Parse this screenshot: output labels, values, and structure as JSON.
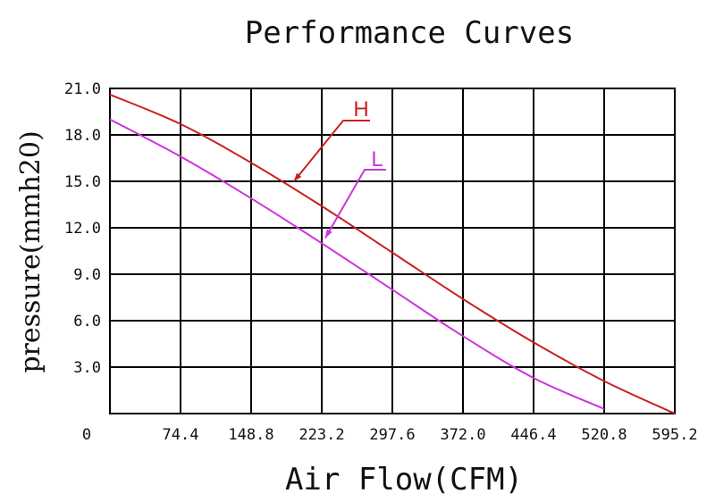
{
  "chart_data": {
    "type": "line",
    "title": "Performance Curves",
    "xlabel": "Air Flow(CFM)",
    "ylabel": "pressure(mmh20)",
    "xlim": [
      0,
      595.2
    ],
    "ylim": [
      0,
      21.0
    ],
    "x_ticks": [
      "0",
      "74.4",
      "148.8",
      "223.2",
      "297.6",
      "372.0",
      "446.4",
      "520.8",
      "595.2"
    ],
    "x_tick_values": [
      0,
      74.4,
      148.8,
      223.2,
      297.6,
      372.0,
      446.4,
      520.8,
      595.2
    ],
    "y_ticks": [
      "21.0",
      "18.0",
      "15.0",
      "12.0",
      "9.0",
      "6.0",
      "3.0"
    ],
    "y_tick_values": [
      21.0,
      18.0,
      15.0,
      12.0,
      9.0,
      6.0,
      3.0
    ],
    "grid": true,
    "series": [
      {
        "name": "H",
        "color": "#cc1f1f",
        "x": [
          0,
          74.4,
          148.8,
          223.2,
          297.6,
          372.0,
          446.4,
          520.8,
          595.2
        ],
        "y": [
          20.6,
          18.7,
          16.2,
          13.4,
          10.4,
          7.4,
          4.6,
          2.1,
          0.0
        ]
      },
      {
        "name": "L",
        "color": "#cc33dd",
        "x": [
          0,
          74.4,
          148.8,
          223.2,
          297.6,
          372.0,
          446.4,
          520.8
        ],
        "y": [
          19.0,
          16.6,
          13.9,
          11.0,
          8.0,
          5.0,
          2.3,
          0.3
        ]
      }
    ]
  }
}
